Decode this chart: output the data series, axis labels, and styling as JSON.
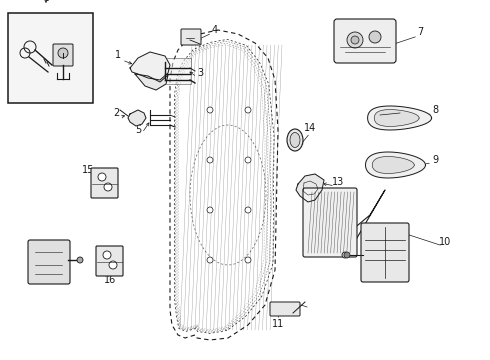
{
  "bg_color": "#ffffff",
  "line_color": "#1a1a1a",
  "lw": 0.7,
  "fig_width": 4.9,
  "fig_height": 3.6,
  "dpi": 100,
  "xlim": [
    0,
    490
  ],
  "ylim": [
    0,
    360
  ]
}
